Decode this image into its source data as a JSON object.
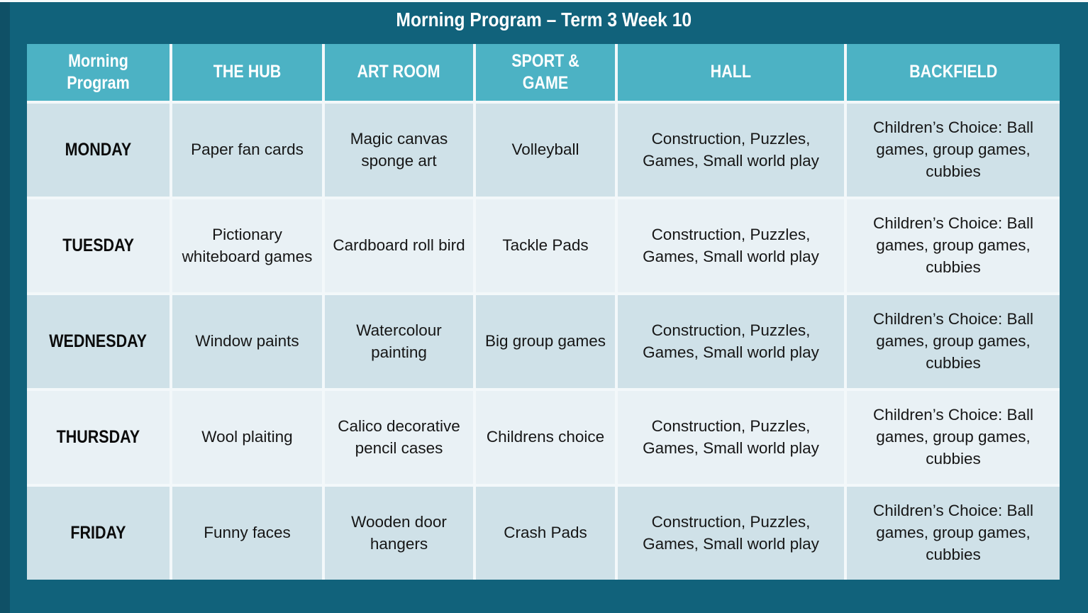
{
  "title": "Morning Program – Term 3 Week 10",
  "colors": {
    "background": "#11627B",
    "left_edge": "#0F5066",
    "header_fill": "#4CB2C4",
    "header_text": "#FFFFFF",
    "row_dark": "#CFE1E8",
    "row_light": "#E9F1F5",
    "gridline": "#F3F8FA",
    "body_text": "#161616"
  },
  "table": {
    "headers": [
      "Morning Program",
      "THE HUB",
      "ART ROOM",
      "SPORT & GAME",
      "HALL",
      "BACKFIELD"
    ],
    "rows": [
      {
        "day": "MONDAY",
        "cells": [
          "Paper fan cards",
          "Magic canvas sponge art",
          "Volleyball",
          "Construction, Puzzles, Games, Small world play",
          "Children’s Choice: Ball games, group games, cubbies"
        ]
      },
      {
        "day": "TUESDAY",
        "cells": [
          "Pictionary whiteboard games",
          "Cardboard roll bird",
          "Tackle Pads",
          "Construction, Puzzles, Games, Small world play",
          "Children’s Choice: Ball games, group games, cubbies"
        ]
      },
      {
        "day": "WEDNESDAY",
        "cells": [
          "Window paints",
          "Watercolour painting",
          "Big group games",
          "Construction, Puzzles, Games, Small world play",
          "Children’s Choice: Ball games, group games, cubbies"
        ]
      },
      {
        "day": "THURSDAY",
        "cells": [
          "Wool plaiting",
          "Calico decorative pencil cases",
          "Childrens choice",
          "Construction, Puzzles, Games, Small world play",
          "Children’s Choice: Ball games, group games, cubbies"
        ]
      },
      {
        "day": "FRIDAY",
        "cells": [
          "Funny faces",
          "Wooden door hangers",
          "Crash Pads",
          "Construction, Puzzles, Games, Small world play",
          "Children’s Choice: Ball games, group games, cubbies"
        ]
      }
    ]
  }
}
